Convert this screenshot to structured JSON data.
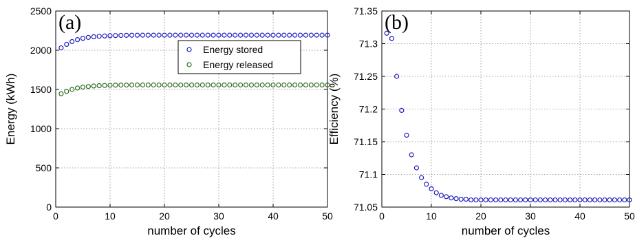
{
  "chart_data": [
    {
      "type": "scatter",
      "panel_label": "(a)",
      "xlabel": "number of cycles",
      "ylabel": "Energy (kWh)",
      "xlim": [
        0,
        50
      ],
      "ylim": [
        0,
        2500
      ],
      "xticks": [
        "0",
        "10",
        "20",
        "30",
        "40",
        "50"
      ],
      "yticks": [
        "0",
        "500",
        "1000",
        "1500",
        "2000",
        "2500"
      ],
      "grid": true,
      "legend_position": "top-right",
      "x": [
        1,
        2,
        3,
        4,
        5,
        6,
        7,
        8,
        9,
        10,
        11,
        12,
        13,
        14,
        15,
        16,
        17,
        18,
        19,
        20,
        21,
        22,
        23,
        24,
        25,
        26,
        27,
        28,
        29,
        30,
        31,
        32,
        33,
        34,
        35,
        36,
        37,
        38,
        39,
        40,
        41,
        42,
        43,
        44,
        45,
        46,
        47,
        48,
        49,
        50
      ],
      "series": [
        {
          "name": "Energy stored",
          "color": "#1f1fbf",
          "values": [
            2030,
            2075,
            2110,
            2135,
            2152,
            2164,
            2172,
            2178,
            2182,
            2185,
            2187,
            2189,
            2190,
            2191,
            2191,
            2192,
            2192,
            2192,
            2192,
            2192,
            2192,
            2192,
            2192,
            2192,
            2192,
            2192,
            2192,
            2192,
            2192,
            2192,
            2192,
            2192,
            2192,
            2192,
            2192,
            2192,
            2192,
            2192,
            2192,
            2192,
            2192,
            2192,
            2192,
            2192,
            2192,
            2192,
            2192,
            2192,
            2192,
            2192
          ]
        },
        {
          "name": "Energy released",
          "color": "#2e6b1f",
          "values": [
            1445,
            1475,
            1500,
            1518,
            1530,
            1538,
            1544,
            1548,
            1551,
            1553,
            1555,
            1556,
            1556,
            1557,
            1557,
            1557,
            1557,
            1557,
            1557,
            1557,
            1557,
            1557,
            1557,
            1557,
            1557,
            1557,
            1557,
            1557,
            1557,
            1557,
            1557,
            1557,
            1557,
            1557,
            1557,
            1557,
            1557,
            1557,
            1557,
            1557,
            1557,
            1557,
            1557,
            1557,
            1557,
            1557,
            1557,
            1557,
            1557,
            1557
          ]
        }
      ]
    },
    {
      "type": "scatter",
      "panel_label": "(b)",
      "xlabel": "number of cycles",
      "ylabel": "Efficiency (%)",
      "xlim": [
        0,
        50
      ],
      "ylim": [
        71.05,
        71.35
      ],
      "xticks": [
        "0",
        "10",
        "20",
        "30",
        "40",
        "50"
      ],
      "yticks": [
        "71.05",
        "71.1",
        "71.15",
        "71.2",
        "71.25",
        "71.3",
        "71.35"
      ],
      "grid": true,
      "x": [
        1,
        2,
        3,
        4,
        5,
        6,
        7,
        8,
        9,
        10,
        11,
        12,
        13,
        14,
        15,
        16,
        17,
        18,
        19,
        20,
        21,
        22,
        23,
        24,
        25,
        26,
        27,
        28,
        29,
        30,
        31,
        32,
        33,
        34,
        35,
        36,
        37,
        38,
        39,
        40,
        41,
        42,
        43,
        44,
        45,
        46,
        47,
        48,
        49,
        50
      ],
      "series": [
        {
          "color": "#1f1fbf",
          "values": [
            71.316,
            71.308,
            71.25,
            71.198,
            71.16,
            71.13,
            71.11,
            71.095,
            71.085,
            71.078,
            71.072,
            71.068,
            71.066,
            71.064,
            71.063,
            71.062,
            71.062,
            71.061,
            71.061,
            71.061,
            71.061,
            71.061,
            71.061,
            71.061,
            71.061,
            71.061,
            71.061,
            71.061,
            71.061,
            71.061,
            71.061,
            71.061,
            71.061,
            71.061,
            71.061,
            71.061,
            71.061,
            71.061,
            71.061,
            71.061,
            71.061,
            71.061,
            71.061,
            71.061,
            71.061,
            71.061,
            71.061,
            71.061,
            71.061,
            71.061
          ]
        }
      ]
    }
  ]
}
